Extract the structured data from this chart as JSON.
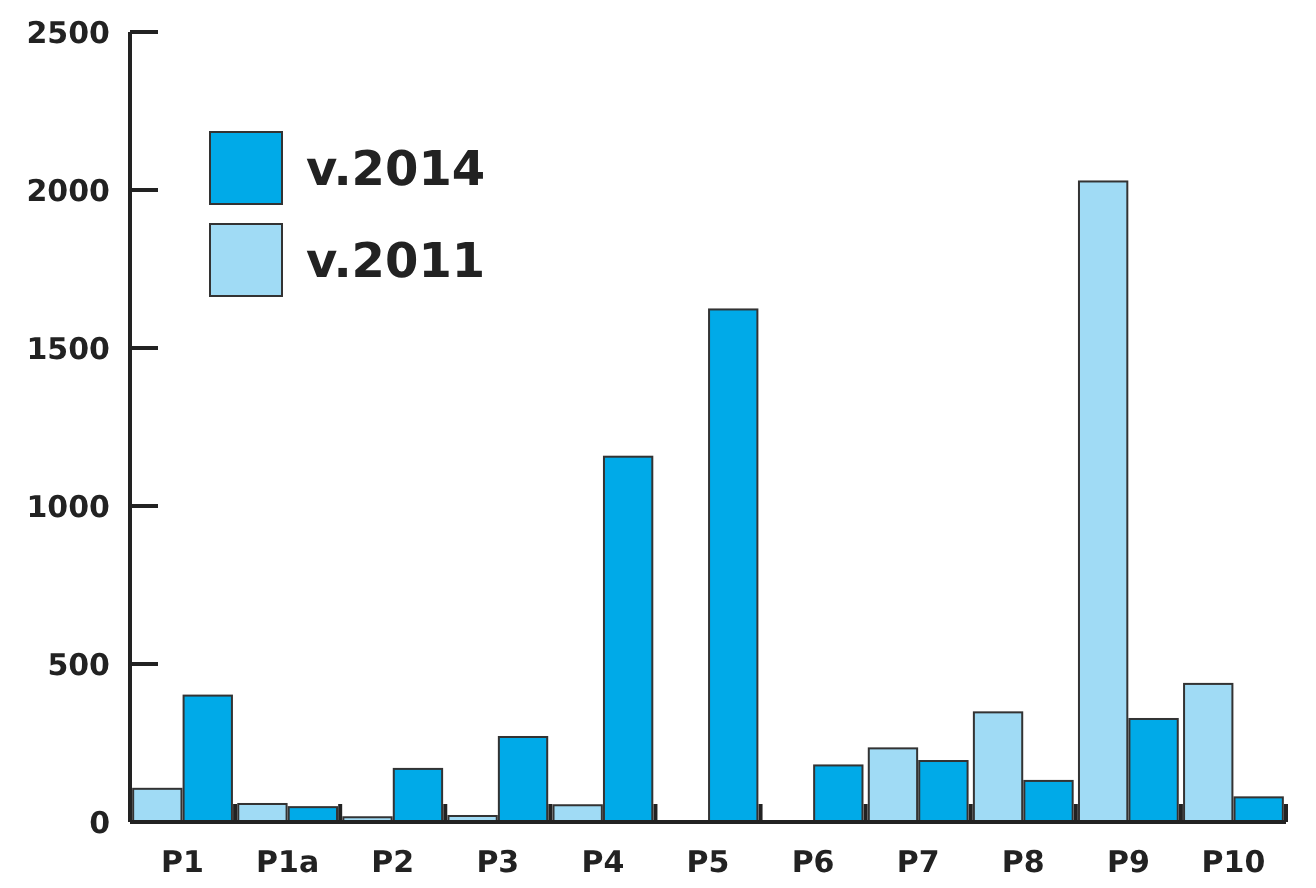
{
  "chart_data": {
    "type": "bar",
    "categories": [
      "P1",
      "P1a",
      "P2",
      "P3",
      "P4",
      "P5",
      "P6",
      "P7",
      "P8",
      "P9",
      "P10"
    ],
    "series": [
      {
        "name": "v.2014",
        "color": "#00aae8",
        "values": [
          400,
          47,
          168,
          269,
          1156,
          1622,
          179,
          193,
          130,
          326,
          78
        ]
      },
      {
        "name": "v.2011",
        "color": "#a0dbf5",
        "values": [
          105,
          57,
          15,
          19,
          53,
          null,
          null,
          233,
          347,
          2027,
          437
        ]
      }
    ],
    "ylim": [
      0,
      2500
    ],
    "yticks": [
      0,
      500,
      1000,
      1500,
      2000,
      2500
    ],
    "grid": false,
    "legend": "top left"
  }
}
